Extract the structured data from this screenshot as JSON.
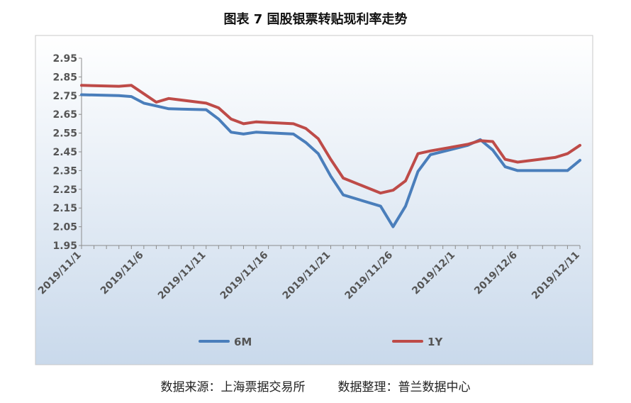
{
  "title": "图表 7  国股银票转贴现利率走势",
  "source": {
    "left": "数据来源：上海票据交易所",
    "right": "数据整理：普兰数据中心"
  },
  "colors": {
    "6M": "#4a7ebb",
    "1Y": "#be4b48",
    "bg_top": "#ffffff",
    "bg_bottom": "#c9d9eb"
  },
  "chart_data": {
    "type": "line",
    "title": "",
    "xlabel": "",
    "ylabel": "",
    "ylim": [
      1.95,
      2.95
    ],
    "yticks": [
      "2.95",
      "2.85",
      "2.75",
      "2.65",
      "2.55",
      "2.45",
      "2.35",
      "2.25",
      "2.15",
      "2.05",
      "1.95"
    ],
    "xticks": [
      "2019/11/1",
      "2019/11/6",
      "2019/11/11",
      "2019/11/16",
      "2019/11/21",
      "2019/11/26",
      "2019/12/1",
      "2019/12/6",
      "2019/12/11"
    ],
    "grid": false,
    "legend": "bottom",
    "series": [
      {
        "name": "6M",
        "points": [
          [
            "2019/11/1",
            2.755
          ],
          [
            "2019/11/4",
            2.75
          ],
          [
            "2019/11/5",
            2.745
          ],
          [
            "2019/11/6",
            2.71
          ],
          [
            "2019/11/7",
            2.695
          ],
          [
            "2019/11/8",
            2.68
          ],
          [
            "2019/11/11",
            2.675
          ],
          [
            "2019/11/12",
            2.625
          ],
          [
            "2019/11/13",
            2.555
          ],
          [
            "2019/11/14",
            2.545
          ],
          [
            "2019/11/15",
            2.555
          ],
          [
            "2019/11/18",
            2.545
          ],
          [
            "2019/11/19",
            2.5
          ],
          [
            "2019/11/20",
            2.44
          ],
          [
            "2019/11/21",
            2.32
          ],
          [
            "2019/11/22",
            2.22
          ],
          [
            "2019/11/25",
            2.16
          ],
          [
            "2019/11/26",
            2.05
          ],
          [
            "2019/11/27",
            2.16
          ],
          [
            "2019/11/28",
            2.345
          ],
          [
            "2019/11/29",
            2.435
          ],
          [
            "2019/12/2",
            2.485
          ],
          [
            "2019/12/3",
            2.515
          ],
          [
            "2019/12/4",
            2.46
          ],
          [
            "2019/12/5",
            2.37
          ],
          [
            "2019/12/6",
            2.35
          ],
          [
            "2019/12/9",
            2.35
          ],
          [
            "2019/12/10",
            2.35
          ],
          [
            "2019/12/11",
            2.405
          ]
        ]
      },
      {
        "name": "1Y",
        "points": [
          [
            "2019/11/1",
            2.805
          ],
          [
            "2019/11/4",
            2.8
          ],
          [
            "2019/11/5",
            2.805
          ],
          [
            "2019/11/6",
            2.76
          ],
          [
            "2019/11/7",
            2.715
          ],
          [
            "2019/11/8",
            2.735
          ],
          [
            "2019/11/11",
            2.71
          ],
          [
            "2019/11/12",
            2.685
          ],
          [
            "2019/11/13",
            2.625
          ],
          [
            "2019/11/14",
            2.6
          ],
          [
            "2019/11/15",
            2.61
          ],
          [
            "2019/11/18",
            2.6
          ],
          [
            "2019/11/19",
            2.575
          ],
          [
            "2019/11/20",
            2.52
          ],
          [
            "2019/11/21",
            2.41
          ],
          [
            "2019/11/22",
            2.31
          ],
          [
            "2019/11/25",
            2.23
          ],
          [
            "2019/11/26",
            2.245
          ],
          [
            "2019/11/27",
            2.295
          ],
          [
            "2019/11/28",
            2.44
          ],
          [
            "2019/11/29",
            2.455
          ],
          [
            "2019/12/2",
            2.49
          ],
          [
            "2019/12/3",
            2.51
          ],
          [
            "2019/12/4",
            2.505
          ],
          [
            "2019/12/5",
            2.41
          ],
          [
            "2019/12/6",
            2.395
          ],
          [
            "2019/12/9",
            2.42
          ],
          [
            "2019/12/10",
            2.44
          ],
          [
            "2019/12/11",
            2.485
          ]
        ]
      }
    ]
  }
}
